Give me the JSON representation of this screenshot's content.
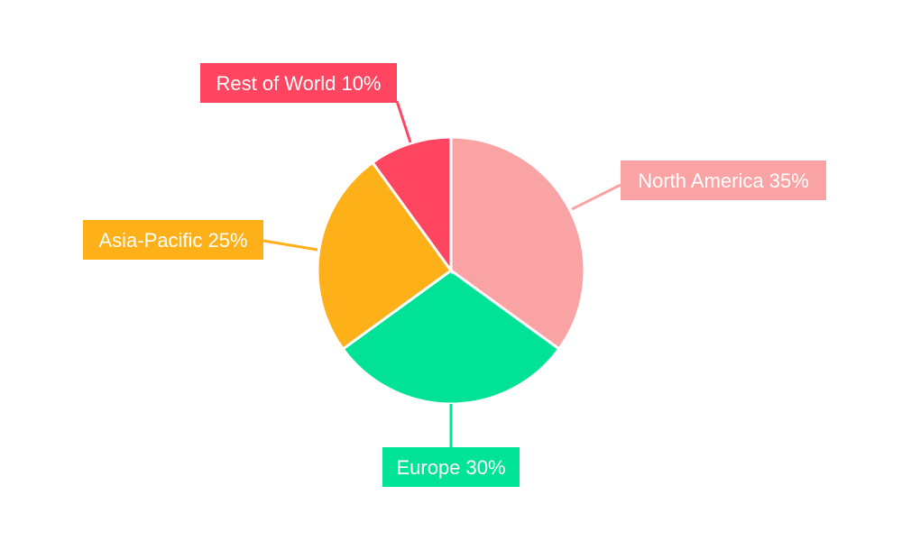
{
  "chart_data": {
    "type": "pie",
    "title": "",
    "start_angle": "top, clockwise",
    "slices": [
      {
        "label": "North America",
        "value": 35,
        "text": "North America 35%",
        "color": "#F9A3A4"
      },
      {
        "label": "Europe",
        "value": 30,
        "text": "Europe 30%",
        "color": "#00E396"
      },
      {
        "label": "Asia-Pacific",
        "value": 25,
        "text": "Asia-Pacific 25%",
        "color": "#FEB019"
      },
      {
        "label": "Rest of World",
        "value": 10,
        "text": "Rest of World 10%",
        "color": "#FF4560"
      }
    ],
    "legend": "none",
    "data_labels": "outside with leader lines"
  }
}
